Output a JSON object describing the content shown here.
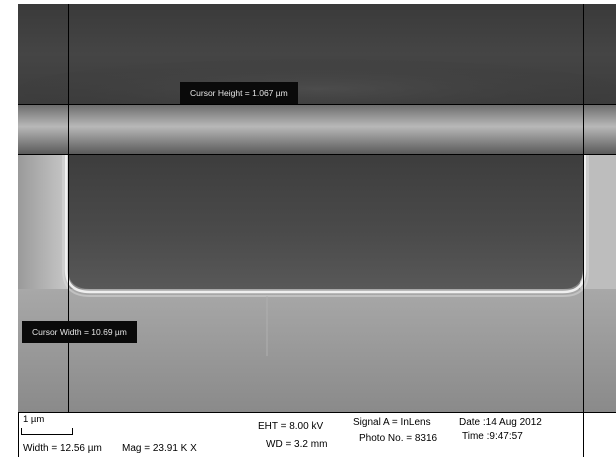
{
  "cursors": {
    "height_label": "Cursor Height = 1.067 µm",
    "width_label": "Cursor Width = 10.69 µm"
  },
  "data_bar": {
    "scale_label": "1 µm",
    "width": "Width = 12.56 µm",
    "mag": "Mag =  23.91 K X",
    "eht": "EHT =  8.00 kV",
    "wd": "WD =  3.2 mm",
    "signal": "Signal A = InLens",
    "photo_no": "Photo No. = 8316",
    "date": "Date :14 Aug 2012",
    "time": "Time :9:47:57"
  },
  "colors": {
    "background": "#888888",
    "trench_fill": "#4a4a4a",
    "edge_highlight": "#f2f2f2",
    "label_background": "#0a0a0a"
  }
}
